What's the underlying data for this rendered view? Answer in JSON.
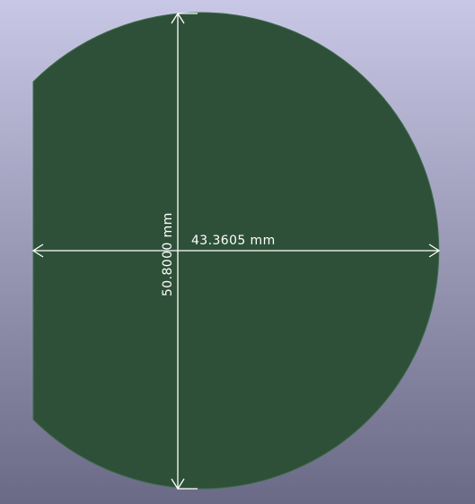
{
  "viewer": {
    "background_top": "#c8c8e6",
    "background_bottom": "#6a6a86"
  },
  "board": {
    "fill": "#2e5038",
    "outline": "#3f6b4c"
  },
  "dimensions": {
    "color": "#ffffff",
    "horizontal": {
      "label": "43.3605 mm",
      "value": 43.3605,
      "unit": "mm"
    },
    "vertical": {
      "label": "50.8000 mm",
      "value": 50.8,
      "unit": "mm"
    }
  }
}
